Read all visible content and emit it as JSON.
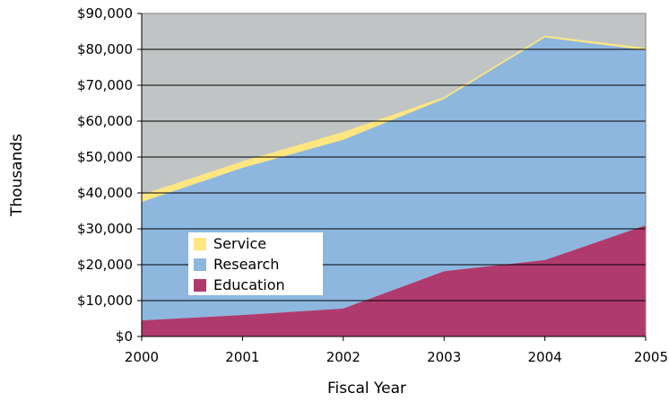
{
  "chart_data": {
    "type": "area",
    "stacked": true,
    "x": [
      "2000",
      "2001",
      "2002",
      "2003",
      "2004",
      "2005"
    ],
    "series": [
      {
        "name": "Education",
        "color": "#b03a6e",
        "values": [
          4500,
          6000,
          7800,
          18200,
          21300,
          31000
        ]
      },
      {
        "name": "Research",
        "color": "#8db7df",
        "values": [
          33000,
          41000,
          47000,
          48000,
          62000,
          48800
        ]
      },
      {
        "name": "Service",
        "color": "#ffe680",
        "values": [
          2000,
          1800,
          2200,
          500,
          500,
          600
        ]
      }
    ],
    "ylim": [
      0,
      90000
    ],
    "yticks": [
      "$0",
      "$10,000",
      "$20,000",
      "$30,000",
      "$40,000",
      "$50,000",
      "$60,000",
      "$70,000",
      "$80,000",
      "$90,000"
    ],
    "ylabel": "Thousands",
    "xlabel": "Fiscal Year",
    "legend": {
      "order": [
        "Service",
        "Research",
        "Education"
      ],
      "placement": "inside-left"
    },
    "grid": true,
    "plot_background": "#c0c4c4"
  }
}
